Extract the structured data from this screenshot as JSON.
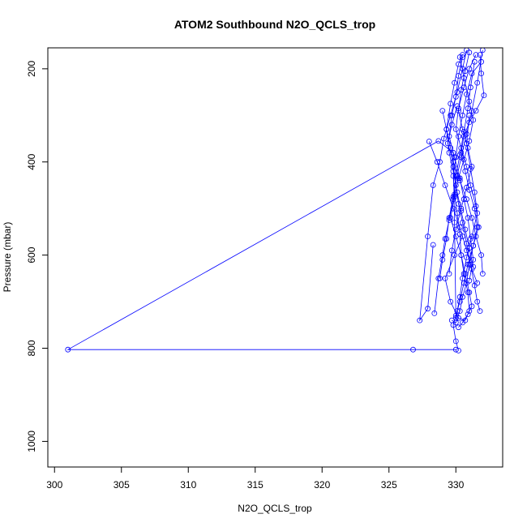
{
  "chart_data": {
    "type": "line",
    "title": "ATOM2 Southbound N2O_QCLS_trop",
    "xlabel": "N2O_QCLS_trop",
    "ylabel": "Pressure (mbar)",
    "xlim": [
      299.5,
      333.5
    ],
    "ylim": [
      1055,
      155
    ],
    "y_reversed": true,
    "grid": false,
    "x_ticks": [
      300,
      305,
      310,
      315,
      320,
      325,
      330
    ],
    "y_ticks": [
      200,
      400,
      600,
      800,
      1000
    ],
    "series_color": "#0000ff",
    "marker": "open-circle",
    "series": [
      {
        "x": [
          331.9,
          331.2,
          330.8,
          330.5,
          330.2,
          330.0,
          329.8,
          329.9,
          330.1,
          330.3,
          330.4,
          330.6,
          330.9,
          331.0,
          330.7,
          330.2,
          329.6,
          329.2,
          329.9,
          330.5
        ],
        "y": [
          185,
          210,
          255,
          300,
          345,
          390,
          430,
          470,
          510,
          555,
          600,
          640,
          680,
          720,
          740,
          735,
          700,
          650,
          600,
          560
        ]
      },
      {
        "x": [
          331.5,
          331.0,
          330.6,
          330.2,
          330.0,
          330.4,
          330.8,
          331.1,
          331.5,
          331.7,
          331.3,
          330.9,
          330.6,
          330.3,
          330.0,
          329.8,
          330.0,
          330.2
        ],
        "y": [
          170,
          200,
          240,
          285,
          330,
          370,
          410,
          450,
          495,
          540,
          580,
          620,
          660,
          700,
          730,
          750,
          785,
          805
        ]
      },
      {
        "x": [
          330.8,
          330.5,
          330.1,
          329.6,
          329.1,
          328.8,
          328.3,
          327.9,
          327.3,
          327.9,
          328.3
        ],
        "y": [
          160,
          200,
          250,
          300,
          350,
          400,
          450,
          560,
          740,
          715,
          578
        ]
      },
      {
        "x": [
          331.8,
          331.9,
          332.1,
          331.5,
          331.0,
          330.6,
          330.4,
          330.7,
          331.0,
          331.4,
          331.6,
          331.3,
          331.0,
          330.8,
          330.5,
          330.3,
          330.0,
          329.7
        ],
        "y": [
          170,
          210,
          257,
          290,
          315,
          345,
          380,
          420,
          460,
          500,
          540,
          580,
          620,
          660,
          690,
          720,
          745,
          740
        ]
      },
      {
        "x": [
          330.3,
          330.6,
          331.0,
          331.3,
          331.0,
          330.6,
          330.2,
          329.9,
          329.6,
          330.0,
          330.4,
          330.7,
          331.0,
          331.2,
          330.9,
          330.5,
          330.2
        ],
        "y": [
          175,
          220,
          270,
          310,
          355,
          395,
          435,
          475,
          520,
          560,
          600,
          640,
          680,
          710,
          727,
          745,
          755
        ]
      },
      {
        "x": [
          332.0,
          331.6,
          331.2,
          330.8,
          330.4,
          330.1,
          329.8,
          329.5,
          329.2,
          329.0,
          328.7,
          328.4
        ],
        "y": [
          160,
          230,
          290,
          340,
          390,
          430,
          480,
          525,
          565,
          600,
          650,
          725
        ]
      },
      {
        "x": [
          329.0,
          329.3,
          329.6,
          329.8,
          330.0,
          330.2,
          330.5,
          330.8,
          331.1,
          331.4,
          331.6,
          331.8
        ],
        "y": [
          290,
          330,
          370,
          410,
          450,
          490,
          530,
          575,
          620,
          665,
          700,
          720
        ]
      },
      {
        "x": [
          330.5,
          330.2,
          329.9,
          329.6,
          329.3,
          329.5,
          329.8,
          330.1,
          330.4,
          330.7,
          331.0,
          331.3
        ],
        "y": [
          170,
          190,
          230,
          275,
          330,
          380,
          420,
          465,
          505,
          545,
          585,
          625
        ]
      },
      {
        "x": [
          331.4,
          331.1,
          330.9,
          330.6,
          330.3,
          330.0,
          329.8,
          329.5,
          329.3,
          329.0,
          328.8
        ],
        "y": [
          185,
          240,
          285,
          335,
          385,
          430,
          475,
          520,
          565,
          610,
          650
        ]
      },
      {
        "x": [
          330.1,
          329.7,
          329.4,
          329.8,
          330.3,
          330.8,
          331.2,
          331.5,
          331.9,
          332.0
        ],
        "y": [
          280,
          320,
          360,
          400,
          440,
          480,
          520,
          560,
          600,
          640
        ]
      },
      {
        "x": [
          331.0,
          330.7,
          330.4,
          330.2,
          330.5,
          330.9,
          331.2,
          330.8,
          330.4,
          330.0,
          329.7,
          329.5
        ],
        "y": [
          165,
          205,
          245,
          290,
          330,
          370,
          410,
          455,
          500,
          545,
          590,
          640
        ]
      },
      {
        "x": [
          328.0,
          328.6,
          329.2,
          329.8,
          330.3,
          330.8,
          331.2,
          331.6
        ],
        "y": [
          356,
          400,
          450,
          500,
          540,
          590,
          630,
          660
        ]
      },
      {
        "x": [
          330.5,
          330.2,
          330.0,
          329.7,
          329.5,
          329.9,
          330.3,
          330.6,
          330.9,
          331.1,
          331.3,
          331.0
        ],
        "y": [
          175,
          215,
          260,
          300,
          345,
          390,
          435,
          480,
          520,
          565,
          610,
          655
        ]
      },
      {
        "x": [
          331.0,
          330.8,
          331.1,
          331.4,
          331.6,
          331.2,
          330.8,
          330.5,
          330.3,
          330.1,
          330.0,
          329.9,
          329.8,
          328.7,
          301.0,
          326.8,
          330.0
        ],
        "y": [
          300,
          360,
          415,
          465,
          510,
          560,
          605,
          650,
          690,
          720,
          735,
          530,
          380,
          355,
          803,
          803,
          803
        ]
      }
    ]
  }
}
